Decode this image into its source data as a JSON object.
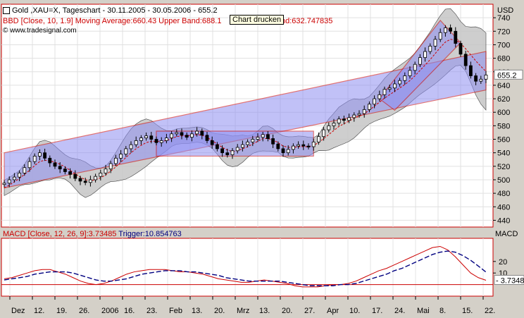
{
  "header": {
    "title": "Gold ,XAU=X, Tageschart - 30.11.2005 - 30.05.2006 - 655.2",
    "bbd_legend": "BBD [Close, 10, 1.9] Moving Average:660.43 Upper Band:688.1",
    "bbd_legend_tail": "nd:632.747835",
    "source": "www.tradesignal.com",
    "currency": "USD",
    "macd_legend": "MACD [Close, 12, 26, 9]:3.73485",
    "trigger_legend": "Trigger:10.854763",
    "macd_axis_title": "MACD",
    "tooltip": "Chart drucken"
  },
  "colors": {
    "panel_bg": "#ffffff",
    "frame": "#cc0000",
    "band_fill": "#c6c6c6",
    "channel_fill": "#8f8ff2",
    "candle": "#000000",
    "ma_line": "#cc0000",
    "macd_line": "#cc0000",
    "trigger_line": "#000080"
  },
  "chart_data": [
    {
      "type": "candlestick",
      "title": "Gold ,XAU=X, Tageschart - 30.11.2005 - 30.05.2006",
      "last": 655.2,
      "ylim": [
        430,
        760
      ],
      "yticks": [
        440,
        460,
        480,
        500,
        520,
        540,
        560,
        580,
        600,
        620,
        640,
        660,
        680,
        700,
        720,
        740
      ],
      "xticks": [
        "Dez",
        "12.",
        "19.",
        "26.",
        "2006",
        "16.",
        "23.",
        "Feb",
        "13.",
        "20.",
        "Mrz",
        "13.",
        "20.",
        "27.",
        "Apr",
        "10.",
        "17.",
        "24.",
        "Mai",
        "8.",
        "15.",
        "22."
      ],
      "series": [
        {
          "name": "Close",
          "values": [
            495,
            500,
            504,
            510,
            518,
            527,
            535,
            540,
            532,
            525,
            520,
            516,
            512,
            508,
            502,
            498,
            496,
            500,
            505,
            510,
            516,
            524,
            532,
            538,
            546,
            552,
            558,
            562,
            565,
            560,
            555,
            558,
            562,
            568,
            570,
            566,
            563,
            568,
            572,
            566,
            558,
            552,
            546,
            540,
            537,
            543,
            548,
            552,
            556,
            560,
            563,
            567,
            561,
            553,
            546,
            540,
            545,
            550,
            552,
            550,
            549,
            556,
            564,
            574,
            580,
            584,
            590,
            588,
            592,
            596,
            598,
            604,
            612,
            620,
            626,
            634,
            636,
            642,
            647,
            654,
            662,
            671,
            681,
            690,
            698,
            708,
            718,
            725,
            720,
            702,
            686,
            669,
            654,
            646,
            649,
            655.2
          ]
        },
        {
          "name": "Moving Average",
          "values": [
            488,
            492,
            497,
            502,
            508,
            514,
            521,
            527,
            529,
            528,
            526,
            523,
            519,
            514,
            509,
            504,
            500,
            499,
            500,
            503,
            507,
            513,
            519,
            526,
            533,
            540,
            546,
            551,
            555,
            557,
            557,
            557,
            558,
            561,
            564,
            565,
            565,
            566,
            567,
            566,
            563,
            558,
            553,
            548,
            544,
            542,
            543,
            546,
            549,
            553,
            557,
            561,
            561,
            559,
            555,
            550,
            548,
            548,
            549,
            549,
            549,
            551,
            555,
            561,
            567,
            573,
            579,
            583,
            587,
            591,
            594,
            598,
            603,
            609,
            615,
            621,
            626,
            631,
            636,
            641,
            647,
            654,
            662,
            670,
            678,
            687,
            696,
            704,
            708,
            707,
            702,
            694,
            685,
            676,
            668,
            660.43
          ]
        }
      ]
    },
    {
      "type": "line",
      "title": "MACD [Close, 12, 26, 9]",
      "ylim": [
        -10,
        40
      ],
      "yticks": [
        10,
        20
      ],
      "value_label": "3.7348",
      "series": [
        {
          "name": "MACD",
          "values": [
            5,
            6,
            8,
            10,
            12,
            13,
            13,
            11,
            9,
            6,
            3,
            1,
            0,
            1,
            3,
            6,
            9,
            11,
            12,
            13,
            13,
            13,
            12,
            11,
            11,
            10,
            9,
            7,
            5,
            4,
            3,
            2,
            2,
            3,
            4,
            3,
            2,
            1,
            -1,
            -2,
            -2,
            -2,
            -1,
            0,
            0,
            1,
            3,
            6,
            9,
            12,
            14,
            17,
            20,
            23,
            26,
            29,
            32,
            33,
            30,
            24,
            17,
            10,
            6,
            3.73
          ]
        },
        {
          "name": "Trigger",
          "values": [
            4,
            5,
            6,
            7,
            9,
            10,
            11,
            11,
            11,
            10,
            8,
            6,
            4,
            3,
            3,
            4,
            5,
            7,
            9,
            10,
            11,
            12,
            12,
            12,
            11,
            11,
            10,
            9,
            8,
            6,
            5,
            4,
            3,
            3,
            3,
            3,
            3,
            2,
            1,
            0,
            -1,
            -1,
            -1,
            -1,
            0,
            0,
            1,
            3,
            5,
            7,
            9,
            12,
            14,
            17,
            20,
            23,
            26,
            28,
            29,
            28,
            25,
            21,
            16,
            10.85
          ]
        }
      ]
    }
  ]
}
